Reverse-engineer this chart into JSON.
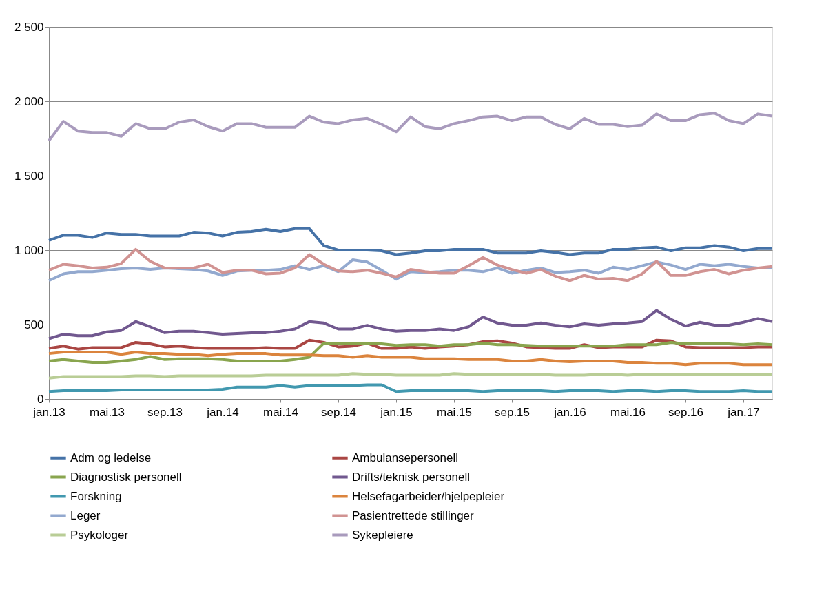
{
  "chart_data": {
    "type": "line",
    "categories": [
      "jan.13",
      null,
      null,
      null,
      "mai.13",
      null,
      null,
      null,
      "sep.13",
      null,
      null,
      null,
      "jan.14",
      null,
      null,
      null,
      "mai.14",
      null,
      null,
      null,
      "sep.14",
      null,
      null,
      null,
      "jan.15",
      null,
      null,
      null,
      "mai.15",
      null,
      null,
      null,
      "sep.15",
      null,
      null,
      null,
      "jan.16",
      null,
      null,
      null,
      "mai.16",
      null,
      null,
      null,
      "sep.16",
      null,
      null,
      null,
      "jan.17",
      null,
      null
    ],
    "ylim": [
      0,
      2500
    ],
    "yticks": [
      0,
      500,
      {
        "value": 1000,
        "label": "1 000"
      },
      {
        "value": 1500,
        "label": "1 500"
      },
      {
        "value": 2000,
        "label": "2 000"
      },
      {
        "value": 2500,
        "label": "2 500"
      }
    ],
    "grid": "y",
    "legend": "bottom",
    "marker": "none",
    "line_style": "solid",
    "series": [
      {
        "name": "Adm og ledelse",
        "color": "#4572a7",
        "values": [
          1065,
          1100,
          1100,
          1085,
          1115,
          1105,
          1105,
          1095,
          1095,
          1095,
          1120,
          1115,
          1095,
          1120,
          1125,
          1140,
          1125,
          1145,
          1145,
          1030,
          1000,
          1000,
          1000,
          995,
          970,
          980,
          995,
          995,
          1005,
          1005,
          1005,
          980,
          980,
          980,
          995,
          985,
          970,
          980,
          980,
          1005,
          1005,
          1015,
          1020,
          995,
          1015,
          1015,
          1030,
          1020,
          995,
          1010,
          1010
        ]
      },
      {
        "name": "Ambulansepersonell",
        "color": "#aa4643",
        "values": [
          340,
          355,
          335,
          345,
          345,
          345,
          380,
          370,
          350,
          355,
          345,
          340,
          340,
          340,
          340,
          345,
          340,
          340,
          395,
          380,
          350,
          355,
          375,
          340,
          340,
          350,
          340,
          350,
          355,
          365,
          385,
          390,
          375,
          350,
          345,
          340,
          340,
          365,
          345,
          350,
          350,
          350,
          395,
          390,
          350,
          345,
          345,
          345,
          345,
          350,
          350
        ]
      },
      {
        "name": "Diagnostisk personell",
        "color": "#89a54e",
        "values": [
          255,
          265,
          255,
          245,
          245,
          255,
          265,
          285,
          265,
          270,
          270,
          270,
          265,
          255,
          255,
          255,
          255,
          265,
          280,
          375,
          370,
          370,
          370,
          370,
          360,
          365,
          365,
          355,
          365,
          365,
          375,
          365,
          365,
          360,
          355,
          355,
          355,
          355,
          355,
          355,
          365,
          365,
          365,
          380,
          370,
          370,
          370,
          370,
          365,
          370,
          365
        ]
      },
      {
        "name": "Drifts/teknisk personell",
        "color": "#71588f",
        "values": [
          405,
          435,
          425,
          425,
          450,
          460,
          520,
          485,
          445,
          455,
          455,
          445,
          435,
          440,
          445,
          445,
          455,
          470,
          520,
          510,
          470,
          470,
          495,
          470,
          455,
          460,
          460,
          470,
          460,
          485,
          550,
          510,
          495,
          495,
          510,
          495,
          485,
          505,
          495,
          505,
          510,
          520,
          595,
          535,
          490,
          515,
          495,
          495,
          515,
          540,
          520
        ]
      },
      {
        "name": "Forskning",
        "color": "#4198af",
        "values": [
          50,
          55,
          55,
          55,
          55,
          60,
          60,
          60,
          60,
          60,
          60,
          60,
          65,
          80,
          80,
          80,
          90,
          80,
          90,
          90,
          90,
          90,
          95,
          95,
          50,
          55,
          55,
          55,
          55,
          55,
          50,
          55,
          55,
          55,
          55,
          50,
          55,
          55,
          55,
          50,
          55,
          55,
          50,
          55,
          55,
          50,
          50,
          50,
          55,
          50,
          50
        ]
      },
      {
        "name": "Helsefagarbeider/hjelpepleier",
        "color": "#db843d",
        "values": [
          305,
          315,
          315,
          315,
          315,
          300,
          315,
          305,
          305,
          300,
          300,
          290,
          300,
          305,
          305,
          305,
          295,
          295,
          295,
          290,
          290,
          280,
          290,
          280,
          280,
          280,
          270,
          270,
          270,
          265,
          265,
          265,
          255,
          255,
          265,
          255,
          250,
          255,
          255,
          255,
          245,
          245,
          240,
          240,
          230,
          240,
          240,
          240,
          230,
          230,
          230
        ]
      },
      {
        "name": "Leger",
        "color": "#93a9cf",
        "values": [
          795,
          840,
          855,
          855,
          865,
          875,
          880,
          870,
          880,
          875,
          870,
          860,
          830,
          860,
          865,
          865,
          870,
          895,
          870,
          895,
          855,
          935,
          920,
          865,
          805,
          855,
          850,
          855,
          865,
          865,
          855,
          880,
          845,
          865,
          880,
          850,
          855,
          865,
          845,
          885,
          870,
          895,
          920,
          900,
          870,
          905,
          895,
          905,
          890,
          880,
          880
        ]
      },
      {
        "name": "Pasientrettede stillinger",
        "color": "#d19392",
        "values": [
          865,
          905,
          895,
          880,
          885,
          910,
          1005,
          925,
          880,
          880,
          880,
          905,
          850,
          865,
          865,
          840,
          845,
          880,
          970,
          905,
          860,
          855,
          865,
          845,
          820,
          870,
          855,
          845,
          845,
          895,
          950,
          900,
          870,
          845,
          870,
          825,
          795,
          830,
          805,
          810,
          795,
          840,
          925,
          830,
          830,
          855,
          870,
          840,
          865,
          880,
          890
        ]
      },
      {
        "name": "Psykologer",
        "color": "#b9cd96",
        "values": [
          140,
          150,
          150,
          150,
          150,
          150,
          155,
          155,
          150,
          155,
          155,
          155,
          155,
          155,
          155,
          160,
          160,
          160,
          160,
          160,
          160,
          170,
          165,
          165,
          160,
          160,
          160,
          160,
          170,
          165,
          165,
          165,
          165,
          165,
          165,
          160,
          160,
          160,
          165,
          165,
          160,
          165,
          165,
          165,
          165,
          165,
          165,
          165,
          165,
          165,
          165
        ]
      },
      {
        "name": "Sykepleiere",
        "color": "#a99bbd",
        "values": [
          1735,
          1865,
          1800,
          1790,
          1790,
          1765,
          1850,
          1815,
          1815,
          1860,
          1875,
          1830,
          1800,
          1850,
          1850,
          1825,
          1825,
          1825,
          1900,
          1860,
          1850,
          1875,
          1885,
          1845,
          1795,
          1895,
          1830,
          1815,
          1850,
          1870,
          1895,
          1900,
          1870,
          1895,
          1895,
          1845,
          1815,
          1885,
          1845,
          1845,
          1830,
          1840,
          1915,
          1870,
          1870,
          1910,
          1920,
          1870,
          1850,
          1915,
          1900
        ]
      }
    ]
  }
}
